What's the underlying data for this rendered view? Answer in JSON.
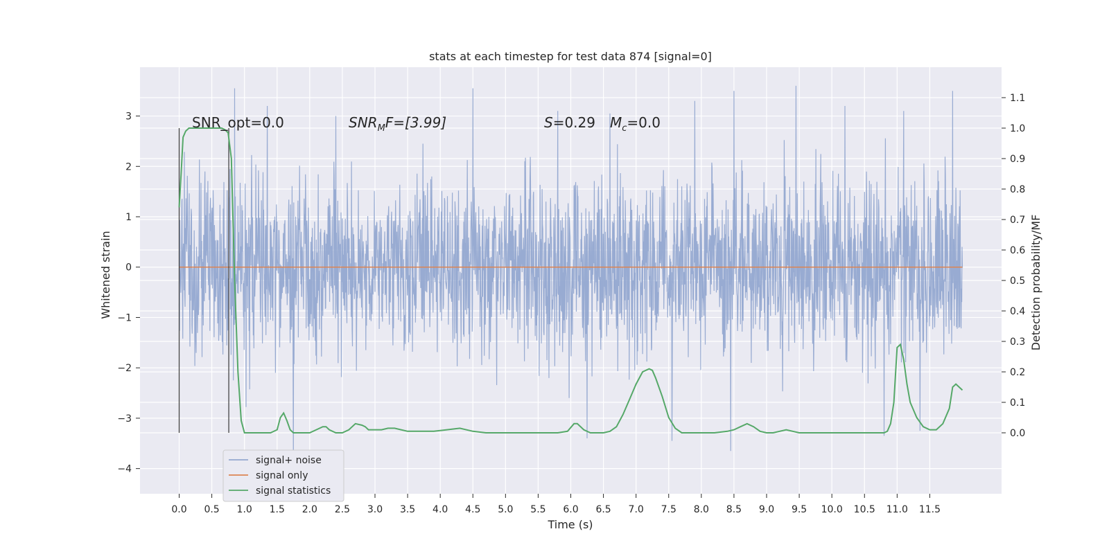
{
  "chart_data": {
    "type": "line",
    "title": "stats at each timestep for test data 874 [signal=0]",
    "xlabel": "Time (s)",
    "ylabel": "Whitened strain",
    "y2label": "Detection probability/MF",
    "xlim": [
      -0.6,
      12.6
    ],
    "ylim": [
      -4.5,
      3.97
    ],
    "y2lim": [
      -0.2,
      1.2
    ],
    "x_ticks": [
      "0.0",
      "0.5",
      "1.0",
      "1.5",
      "2.0",
      "2.5",
      "3.0",
      "3.5",
      "4.0",
      "4.5",
      "5.0",
      "5.5",
      "6.0",
      "6.5",
      "7.0",
      "7.5",
      "8.0",
      "8.5",
      "9.0",
      "9.5",
      "10.0",
      "10.5",
      "11.0",
      "11.5"
    ],
    "y_ticks": [
      "−4",
      "−3",
      "−2",
      "−1",
      "0",
      "1",
      "2",
      "3"
    ],
    "y2_ticks": [
      "0.0",
      "0.1",
      "0.2",
      "0.3",
      "0.4",
      "0.5",
      "0.6",
      "0.7",
      "0.8",
      "0.9",
      "1.0",
      "1.1"
    ],
    "grid": true,
    "legend_position": "lower-left",
    "annotations": {
      "snr_opt": "SNR_opt=0.0",
      "snr_mf_prefix": "SNR",
      "snr_mf_sub": "M",
      "snr_mf_suffix": "F=[3.99]",
      "s_var": "S",
      "s_value": "=0.29",
      "mc_var": "M",
      "mc_sub": "c",
      "mc_value": "=0.0"
    },
    "vlines_x": [
      0.0,
      0.76
    ],
    "series": [
      {
        "name": "signal+ noise",
        "color": "#94a8d0",
        "description_range": {
          "x_start": 0.0,
          "x_end": 12.0,
          "typical_min": -3.0,
          "typical_max": 2.8
        },
        "peaks": [
          {
            "x": 0.85,
            "y": 3.55
          },
          {
            "x": 1.35,
            "y": 3.2
          },
          {
            "x": 2.4,
            "y": 3.0
          },
          {
            "x": 4.5,
            "y": 3.55
          },
          {
            "x": 5.8,
            "y": 3.1
          },
          {
            "x": 6.6,
            "y": 3.05
          },
          {
            "x": 7.9,
            "y": 3.3
          },
          {
            "x": 8.5,
            "y": 3.5
          },
          {
            "x": 9.45,
            "y": 3.6
          },
          {
            "x": 10.2,
            "y": 3.2
          },
          {
            "x": 11.1,
            "y": 3.1
          },
          {
            "x": 11.85,
            "y": 3.5
          }
        ],
        "troughs": [
          {
            "x": 1.75,
            "y": -3.9
          },
          {
            "x": 6.25,
            "y": -3.4
          },
          {
            "x": 7.55,
            "y": -3.45
          },
          {
            "x": 8.45,
            "y": -3.65
          },
          {
            "x": 10.8,
            "y": -3.35
          },
          {
            "x": 11.35,
            "y": -3.25
          }
        ]
      },
      {
        "name": "signal only",
        "color": "#dd8452",
        "x": [
          0.0,
          12.0
        ],
        "y": [
          0.0,
          0.0
        ]
      },
      {
        "name": "signal statistics",
        "color": "#55a868",
        "axis": "right",
        "x": [
          0.0,
          0.03,
          0.06,
          0.1,
          0.15,
          0.2,
          0.3,
          0.4,
          0.5,
          0.6,
          0.65,
          0.7,
          0.75,
          0.8,
          0.85,
          0.9,
          0.95,
          1.0,
          1.2,
          1.4,
          1.5,
          1.55,
          1.6,
          1.65,
          1.7,
          1.75,
          1.8,
          1.9,
          2.0,
          2.1,
          2.2,
          2.25,
          2.3,
          2.4,
          2.5,
          2.6,
          2.7,
          2.8,
          2.85,
          2.9,
          3.0,
          3.1,
          3.2,
          3.3,
          3.4,
          3.5,
          3.7,
          3.9,
          4.1,
          4.3,
          4.5,
          4.7,
          4.9,
          5.2,
          5.5,
          5.8,
          5.95,
          6.05,
          6.1,
          6.2,
          6.3,
          6.4,
          6.5,
          6.6,
          6.7,
          6.8,
          6.9,
          7.0,
          7.1,
          7.2,
          7.25,
          7.3,
          7.4,
          7.5,
          7.6,
          7.7,
          7.8,
          8.0,
          8.2,
          8.4,
          8.5,
          8.6,
          8.7,
          8.8,
          8.9,
          9.0,
          9.1,
          9.2,
          9.3,
          9.4,
          9.5,
          9.7,
          10.0,
          10.3,
          10.6,
          10.8,
          10.85,
          10.9,
          10.95,
          11.0,
          11.05,
          11.1,
          11.15,
          11.2,
          11.3,
          11.4,
          11.5,
          11.6,
          11.7,
          11.8,
          11.85,
          11.9,
          11.95,
          12.0
        ],
        "y": [
          0.74,
          0.85,
          0.97,
          0.99,
          1.0,
          1.0,
          1.0,
          1.0,
          1.0,
          1.0,
          1.0,
          0.995,
          0.985,
          0.9,
          0.5,
          0.2,
          0.04,
          0.0,
          0.0,
          0.0,
          0.01,
          0.05,
          0.065,
          0.04,
          0.01,
          0.0,
          0.0,
          0.0,
          0.0,
          0.01,
          0.02,
          0.02,
          0.01,
          0.0,
          0.0,
          0.01,
          0.03,
          0.025,
          0.02,
          0.01,
          0.01,
          0.01,
          0.015,
          0.015,
          0.01,
          0.005,
          0.005,
          0.005,
          0.01,
          0.015,
          0.005,
          0.0,
          0.0,
          0.0,
          0.0,
          0.0,
          0.005,
          0.03,
          0.03,
          0.01,
          0.0,
          0.0,
          0.0,
          0.005,
          0.02,
          0.06,
          0.11,
          0.16,
          0.2,
          0.21,
          0.205,
          0.18,
          0.12,
          0.05,
          0.015,
          0.0,
          0.0,
          0.0,
          0.0,
          0.005,
          0.01,
          0.02,
          0.03,
          0.02,
          0.005,
          0.0,
          0.0,
          0.005,
          0.01,
          0.005,
          0.0,
          0.0,
          0.0,
          0.0,
          0.0,
          0.0,
          0.005,
          0.03,
          0.1,
          0.28,
          0.29,
          0.24,
          0.16,
          0.1,
          0.05,
          0.02,
          0.01,
          0.01,
          0.03,
          0.08,
          0.15,
          0.16,
          0.15,
          0.14
        ]
      }
    ]
  }
}
